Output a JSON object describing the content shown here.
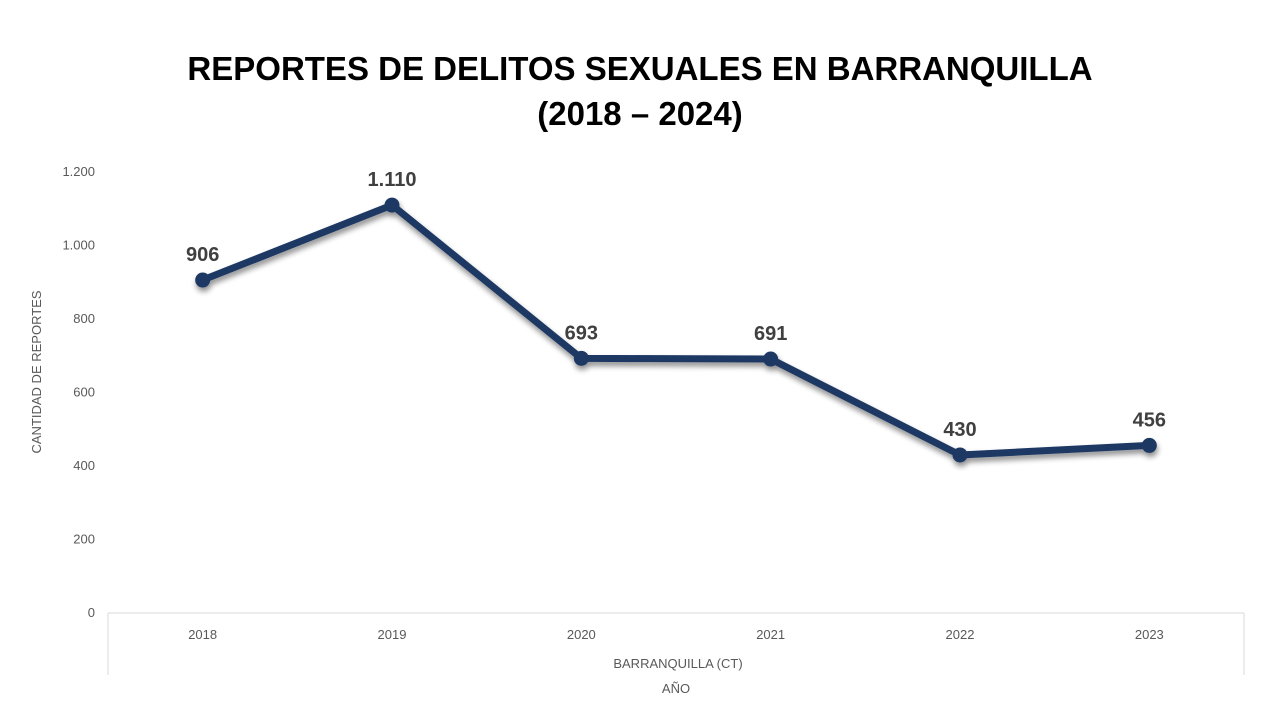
{
  "chart_data": {
    "type": "line",
    "title": "REPORTES DE DELITOS SEXUALES EN BARRANQUILLA",
    "subtitle": "(2018 – 2024)",
    "categories": [
      "2018",
      "2019",
      "2020",
      "2021",
      "2022",
      "2023"
    ],
    "category_group_label": "BARRANQUILLA (CT)",
    "xlabel": "AÑO",
    "ylabel": "CANTIDAD DE REPORTES",
    "series": [
      {
        "values": [
          906,
          1110,
          693,
          691,
          430,
          456
        ],
        "data_labels": [
          "906",
          "1.110",
          "693",
          "691",
          "430",
          "456"
        ],
        "color": "#1F3864"
      }
    ],
    "ylim": [
      0,
      1200
    ],
    "yticks": [
      0,
      200,
      400,
      600,
      800,
      1000,
      1200
    ],
    "ytick_labels": [
      "0",
      "200",
      "400",
      "600",
      "800",
      "1.000",
      "1.200"
    ],
    "grid": false,
    "legend": "none"
  }
}
